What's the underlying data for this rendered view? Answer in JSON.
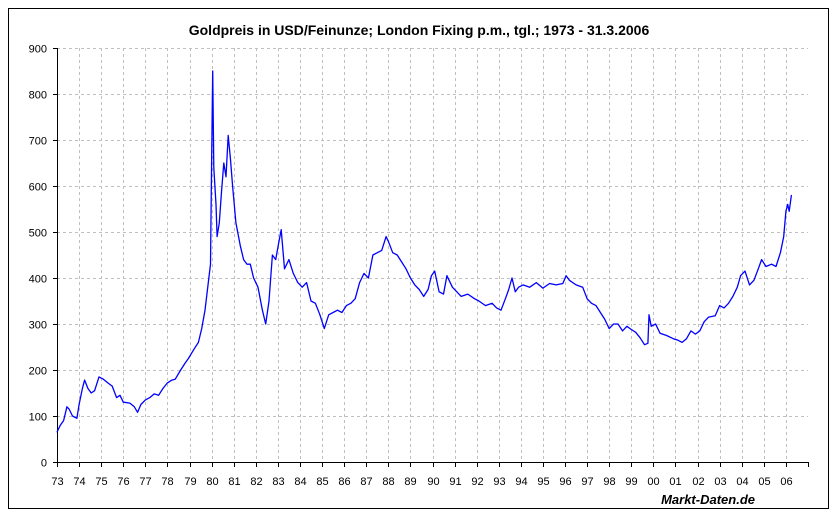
{
  "chart_data": {
    "type": "line",
    "title": "Goldpreis in USD/Feinunze; London Fixing p.m., tgl.; 1973 - 31.3.2006",
    "xlabel": "",
    "ylabel": "",
    "xlim": [
      1973,
      2007
    ],
    "ylim": [
      0,
      900
    ],
    "grid": true,
    "legend": "none",
    "line_color": "#0000ff",
    "x_tick_labels": [
      "73",
      "74",
      "75",
      "76",
      "77",
      "78",
      "79",
      "80",
      "81",
      "82",
      "83",
      "84",
      "85",
      "86",
      "87",
      "88",
      "89",
      "90",
      "91",
      "92",
      "93",
      "94",
      "95",
      "96",
      "97",
      "98",
      "99",
      "00",
      "01",
      "02",
      "03",
      "04",
      "05",
      "06"
    ],
    "y_tick_labels": [
      "0",
      "100",
      "200",
      "300",
      "400",
      "500",
      "600",
      "700",
      "800",
      "900"
    ],
    "series": [
      {
        "points": [
          [
            1973.0,
            65
          ],
          [
            1973.15,
            80
          ],
          [
            1973.3,
            90
          ],
          [
            1973.45,
            120
          ],
          [
            1973.55,
            115
          ],
          [
            1973.7,
            100
          ],
          [
            1973.9,
            95
          ],
          [
            1974.0,
            125
          ],
          [
            1974.15,
            160
          ],
          [
            1974.25,
            178
          ],
          [
            1974.4,
            160
          ],
          [
            1974.55,
            150
          ],
          [
            1974.7,
            155
          ],
          [
            1974.9,
            185
          ],
          [
            1975.1,
            180
          ],
          [
            1975.3,
            172
          ],
          [
            1975.5,
            165
          ],
          [
            1975.7,
            140
          ],
          [
            1975.85,
            145
          ],
          [
            1976.0,
            130
          ],
          [
            1976.3,
            128
          ],
          [
            1976.5,
            120
          ],
          [
            1976.65,
            108
          ],
          [
            1976.8,
            125
          ],
          [
            1977.0,
            135
          ],
          [
            1977.2,
            140
          ],
          [
            1977.4,
            148
          ],
          [
            1977.6,
            145
          ],
          [
            1977.8,
            160
          ],
          [
            1978.0,
            172
          ],
          [
            1978.2,
            178
          ],
          [
            1978.35,
            180
          ],
          [
            1978.6,
            200
          ],
          [
            1978.8,
            215
          ],
          [
            1978.95,
            225
          ],
          [
            1979.2,
            245
          ],
          [
            1979.4,
            260
          ],
          [
            1979.55,
            290
          ],
          [
            1979.7,
            330
          ],
          [
            1979.85,
            390
          ],
          [
            1979.95,
            430
          ],
          [
            1980.0,
            650
          ],
          [
            1980.05,
            850
          ],
          [
            1980.1,
            640
          ],
          [
            1980.2,
            560
          ],
          [
            1980.25,
            490
          ],
          [
            1980.35,
            520
          ],
          [
            1980.45,
            590
          ],
          [
            1980.55,
            650
          ],
          [
            1980.65,
            620
          ],
          [
            1980.75,
            710
          ],
          [
            1980.85,
            660
          ],
          [
            1980.95,
            600
          ],
          [
            1981.1,
            520
          ],
          [
            1981.3,
            470
          ],
          [
            1981.45,
            440
          ],
          [
            1981.6,
            430
          ],
          [
            1981.75,
            430
          ],
          [
            1981.9,
            400
          ],
          [
            1982.1,
            380
          ],
          [
            1982.3,
            330
          ],
          [
            1982.45,
            300
          ],
          [
            1982.6,
            350
          ],
          [
            1982.75,
            450
          ],
          [
            1982.9,
            440
          ],
          [
            1983.05,
            480
          ],
          [
            1983.15,
            505
          ],
          [
            1983.3,
            420
          ],
          [
            1983.5,
            440
          ],
          [
            1983.7,
            410
          ],
          [
            1983.9,
            390
          ],
          [
            1984.1,
            380
          ],
          [
            1984.3,
            390
          ],
          [
            1984.5,
            350
          ],
          [
            1984.7,
            345
          ],
          [
            1984.9,
            320
          ],
          [
            1985.1,
            290
          ],
          [
            1985.3,
            320
          ],
          [
            1985.5,
            325
          ],
          [
            1985.7,
            330
          ],
          [
            1985.9,
            325
          ],
          [
            1986.1,
            340
          ],
          [
            1986.3,
            345
          ],
          [
            1986.5,
            355
          ],
          [
            1986.7,
            390
          ],
          [
            1986.9,
            410
          ],
          [
            1987.1,
            400
          ],
          [
            1987.3,
            450
          ],
          [
            1987.5,
            455
          ],
          [
            1987.7,
            460
          ],
          [
            1987.9,
            490
          ],
          [
            1988.0,
            480
          ],
          [
            1988.2,
            455
          ],
          [
            1988.4,
            450
          ],
          [
            1988.6,
            435
          ],
          [
            1988.8,
            420
          ],
          [
            1989.0,
            400
          ],
          [
            1989.2,
            385
          ],
          [
            1989.4,
            375
          ],
          [
            1989.6,
            360
          ],
          [
            1989.8,
            375
          ],
          [
            1989.95,
            405
          ],
          [
            1990.1,
            415
          ],
          [
            1990.3,
            370
          ],
          [
            1990.5,
            365
          ],
          [
            1990.65,
            405
          ],
          [
            1990.9,
            380
          ],
          [
            1991.1,
            370
          ],
          [
            1991.3,
            360
          ],
          [
            1991.6,
            365
          ],
          [
            1991.9,
            355
          ],
          [
            1992.1,
            350
          ],
          [
            1992.4,
            340
          ],
          [
            1992.7,
            345
          ],
          [
            1992.9,
            335
          ],
          [
            1993.1,
            330
          ],
          [
            1993.3,
            355
          ],
          [
            1993.45,
            375
          ],
          [
            1993.6,
            400
          ],
          [
            1993.75,
            370
          ],
          [
            1993.9,
            380
          ],
          [
            1994.1,
            385
          ],
          [
            1994.4,
            380
          ],
          [
            1994.7,
            390
          ],
          [
            1995.0,
            378
          ],
          [
            1995.3,
            388
          ],
          [
            1995.6,
            385
          ],
          [
            1995.9,
            388
          ],
          [
            1996.05,
            405
          ],
          [
            1996.2,
            395
          ],
          [
            1996.5,
            385
          ],
          [
            1996.8,
            380
          ],
          [
            1997.0,
            355
          ],
          [
            1997.2,
            345
          ],
          [
            1997.4,
            340
          ],
          [
            1997.6,
            325
          ],
          [
            1997.8,
            310
          ],
          [
            1998.0,
            290
          ],
          [
            1998.2,
            300
          ],
          [
            1998.4,
            300
          ],
          [
            1998.6,
            285
          ],
          [
            1998.8,
            295
          ],
          [
            1999.0,
            288
          ],
          [
            1999.2,
            282
          ],
          [
            1999.4,
            270
          ],
          [
            1999.6,
            255
          ],
          [
            1999.75,
            258
          ],
          [
            1999.8,
            320
          ],
          [
            1999.9,
            295
          ],
          [
            2000.1,
            300
          ],
          [
            2000.3,
            280
          ],
          [
            2000.6,
            275
          ],
          [
            2000.9,
            268
          ],
          [
            2001.1,
            265
          ],
          [
            2001.3,
            260
          ],
          [
            2001.5,
            268
          ],
          [
            2001.7,
            285
          ],
          [
            2001.9,
            278
          ],
          [
            2002.1,
            285
          ],
          [
            2002.3,
            305
          ],
          [
            2002.5,
            315
          ],
          [
            2002.8,
            318
          ],
          [
            2003.0,
            340
          ],
          [
            2003.2,
            335
          ],
          [
            2003.4,
            345
          ],
          [
            2003.6,
            360
          ],
          [
            2003.8,
            380
          ],
          [
            2003.95,
            405
          ],
          [
            2004.15,
            415
          ],
          [
            2004.35,
            385
          ],
          [
            2004.55,
            395
          ],
          [
            2004.75,
            420
          ],
          [
            2004.9,
            440
          ],
          [
            2005.1,
            425
          ],
          [
            2005.35,
            430
          ],
          [
            2005.55,
            425
          ],
          [
            2005.75,
            455
          ],
          [
            2005.9,
            490
          ],
          [
            2006.0,
            545
          ],
          [
            2006.08,
            560
          ],
          [
            2006.15,
            545
          ],
          [
            2006.25,
            580
          ]
        ]
      }
    ]
  },
  "footer": {
    "credit": "Markt-Daten.de"
  }
}
